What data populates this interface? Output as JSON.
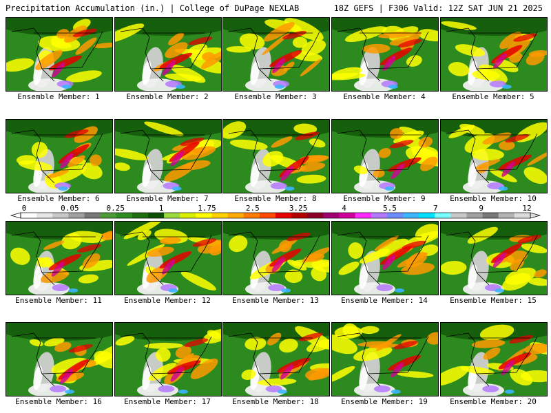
{
  "header": {
    "title": "Precipitation Accumulation (in.) | College of DuPage NEXLAB",
    "run_info": "18Z GEFS | F306 Valid: 12Z SAT JUN 21 2025"
  },
  "member_label_prefix": "Ensemble Member:",
  "members": [
    1,
    2,
    3,
    4,
    5,
    6,
    7,
    8,
    9,
    10,
    11,
    12,
    13,
    14,
    15,
    16,
    17,
    18,
    19,
    20
  ],
  "colorbar": {
    "tick_labels": [
      "0",
      "0.05",
      "0.25",
      "1",
      "1.75",
      "2.5",
      "3.25",
      "4",
      "5.5",
      "7",
      "9",
      "12"
    ],
    "colors": [
      "#ffffff",
      "#e6e6e6",
      "#c8c8c8",
      "#a0a0a0",
      "#787878",
      "#4e9a3a",
      "#2f8a21",
      "#1e6b12",
      "#0f4f08",
      "#9cd93a",
      "#d8f000",
      "#ffff00",
      "#ffd200",
      "#ffaa00",
      "#ff7a00",
      "#ff4a00",
      "#e60000",
      "#b40000",
      "#8c0028",
      "#a0006e",
      "#d2009a",
      "#ff28ff",
      "#b478ff",
      "#6e8cff",
      "#3cb4ff",
      "#00e0ff",
      "#78ffff",
      "#c8c8c8",
      "#a0a0a0",
      "#787878",
      "#b4b4b4",
      "#dcdcdc"
    ]
  },
  "palette": {
    "land_green": "#2d8a1e",
    "dark_green": "#145a0a",
    "light_gray": "#d0d0d0",
    "yellow": "#ffff00",
    "orange": "#ff9a00",
    "red": "#e60000",
    "magenta": "#d2009a",
    "purple": "#b478ff",
    "cyan": "#3cb4ff"
  }
}
